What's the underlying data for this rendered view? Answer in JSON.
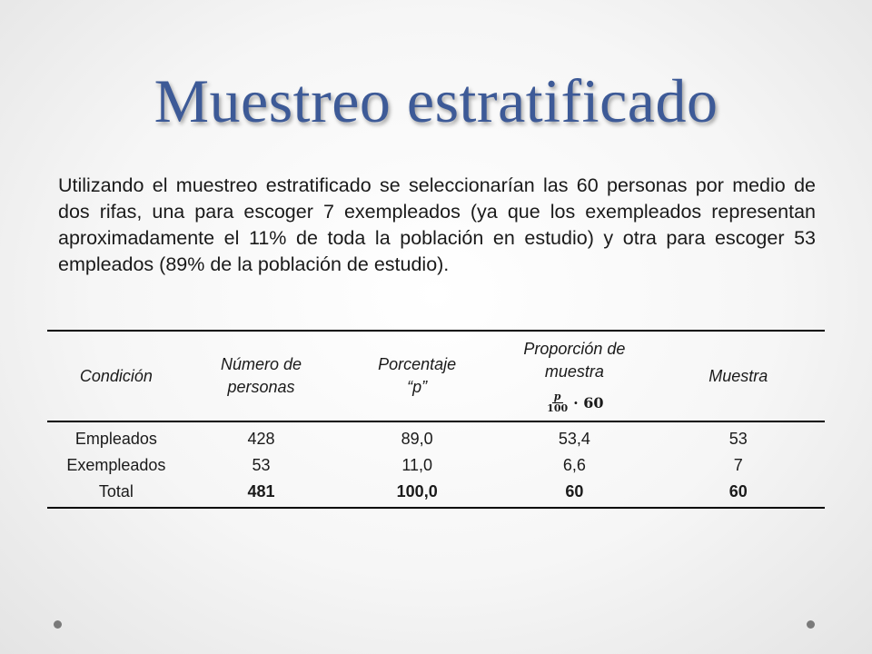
{
  "title": "Muestreo estratificado",
  "paragraph": "Utilizando el muestreo estratificado se seleccionarían las 60 personas por medio de dos rifas, una para escoger 7 exempleados (ya que los exempleados representan aproximadamente el 11% de toda la población en estudio) y otra para escoger 53 empleados (89% de la población de estudio).",
  "table": {
    "headers": {
      "condicion": "Condición",
      "numero": "Número de personas",
      "porcentaje_line1": "Porcentaje",
      "porcentaje_line2": "“p”",
      "proporcion": "Proporción de muestra",
      "formula_num": "p",
      "formula_den": "100",
      "formula_tail": "· 60",
      "muestra": "Muestra"
    },
    "rows": [
      {
        "condicion": "Empleados",
        "numero": "428",
        "porcentaje": "89,0",
        "proporcion": "53,4",
        "muestra": "53"
      },
      {
        "condicion": "Exempleados",
        "numero": "53",
        "porcentaje": "11,0",
        "proporcion": "6,6",
        "muestra": "7"
      },
      {
        "condicion": "Total",
        "numero": "481",
        "porcentaje": "100,0",
        "proporcion": "60",
        "muestra": "60"
      }
    ]
  }
}
